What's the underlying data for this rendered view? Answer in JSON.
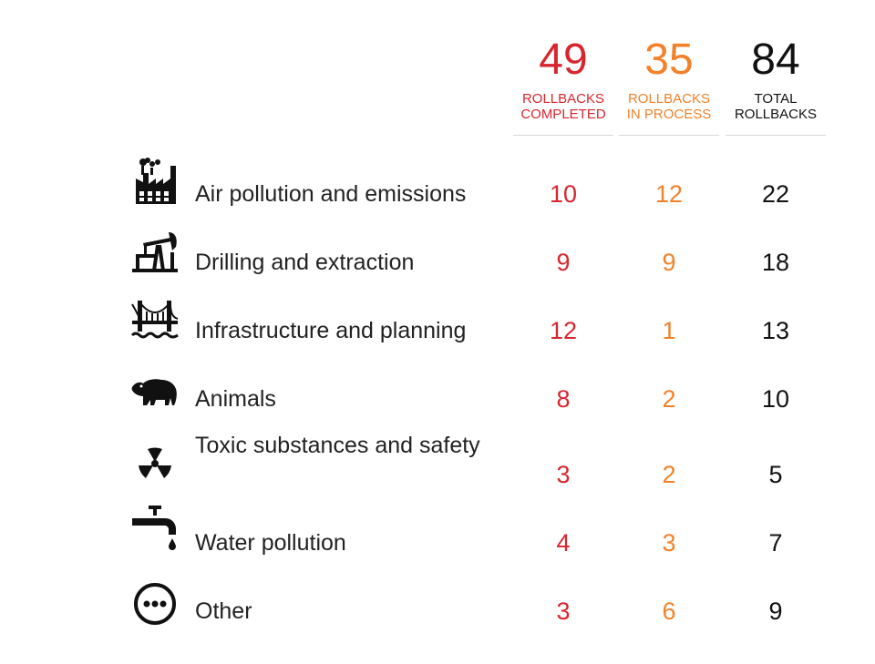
{
  "chart_data": {
    "type": "table",
    "columns": [
      {
        "key": "completed",
        "count": "49",
        "label": "ROLLBACKS\nCOMPLETED",
        "color": "#d7262f"
      },
      {
        "key": "process",
        "count": "35",
        "label": "ROLLBACKS\nIN PROCESS",
        "color": "#f28129"
      },
      {
        "key": "total",
        "count": "84",
        "label": "TOTAL\nROLLBACKS",
        "color": "#111111"
      }
    ],
    "rows": [
      {
        "icon": "factory-icon",
        "category": "Air pollution and emissions",
        "completed": "10",
        "process": "12",
        "total": "22"
      },
      {
        "icon": "oil-pump-icon",
        "category": "Drilling and extraction",
        "completed": "9",
        "process": "9",
        "total": "18"
      },
      {
        "icon": "bridge-icon",
        "category": "Infrastructure and planning",
        "completed": "12",
        "process": "1",
        "total": "13"
      },
      {
        "icon": "bear-icon",
        "category": "Animals",
        "completed": "8",
        "process": "2",
        "total": "10"
      },
      {
        "icon": "radiation-icon",
        "category": "Toxic substances and safety",
        "completed": "3",
        "process": "2",
        "total": "5"
      },
      {
        "icon": "faucet-icon",
        "category": "Water pollution",
        "completed": "4",
        "process": "3",
        "total": "7"
      },
      {
        "icon": "more-icon",
        "category": "Other",
        "completed": "3",
        "process": "6",
        "total": "9"
      }
    ]
  }
}
